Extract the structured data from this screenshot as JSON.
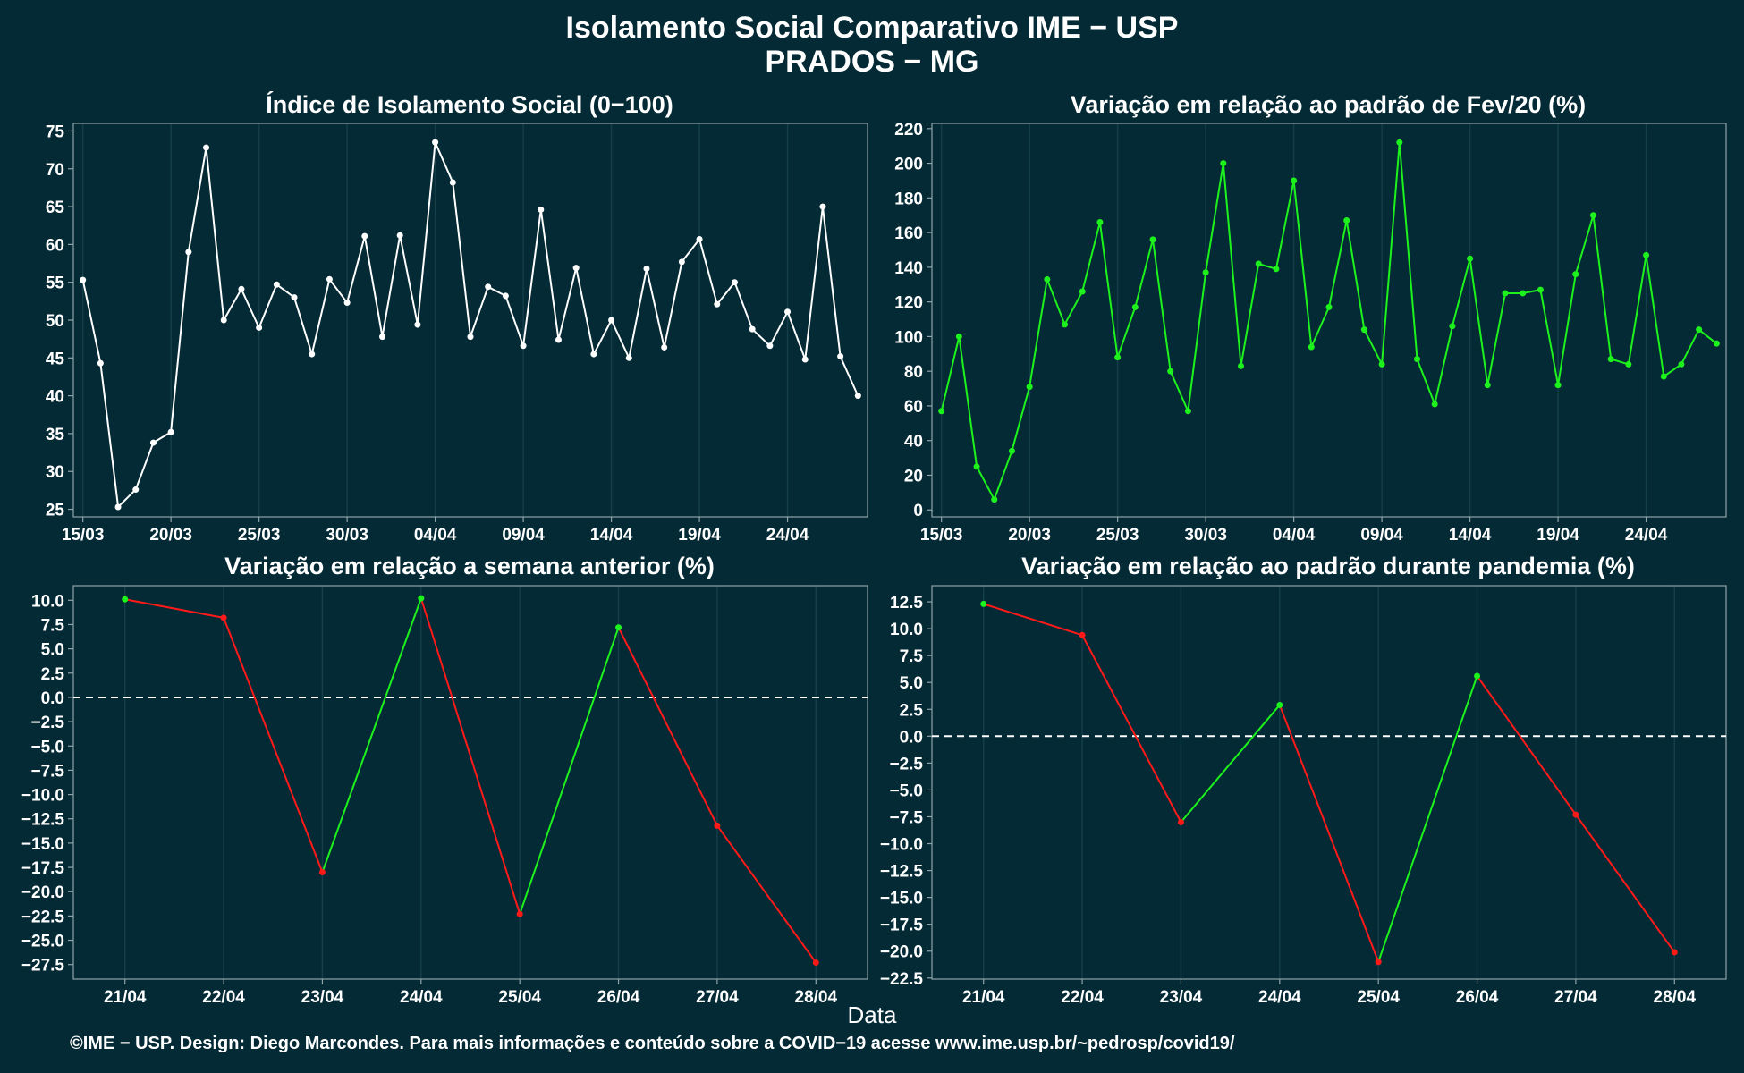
{
  "header": {
    "title_line1": "Isolamento Social Comparativo IME − USP",
    "title_line2": "PRADOS − MG"
  },
  "xlabel": "Data",
  "caption": "©IME − USP. Design: Diego Marcondes. Para mais informações e conteúdo sobre a COVID−19 acesse www.ime.usp.br/~pedrosp/covid19/",
  "colors": {
    "background": "#042a35",
    "white_series": "#ffffff",
    "green_series": "#1df21d",
    "red_series": "#ff1a1a",
    "grid": "#143e4a",
    "axis": "#8fa3a9"
  },
  "chart_data": [
    {
      "id": "p1",
      "type": "line",
      "title": "Índice de Isolamento Social (0−100)",
      "color_mode": "white",
      "x": [
        "15/03",
        "16/03",
        "17/03",
        "18/03",
        "19/03",
        "20/03",
        "21/03",
        "22/03",
        "23/03",
        "24/03",
        "25/03",
        "26/03",
        "27/03",
        "28/03",
        "29/03",
        "30/03",
        "31/03",
        "01/04",
        "02/04",
        "03/04",
        "04/04",
        "05/04",
        "06/04",
        "07/04",
        "08/04",
        "09/04",
        "10/04",
        "11/04",
        "12/04",
        "13/04",
        "14/04",
        "15/04",
        "16/04",
        "17/04",
        "18/04",
        "19/04",
        "20/04",
        "21/04",
        "22/04",
        "23/04",
        "24/04",
        "25/04",
        "26/04",
        "27/04",
        "28/04"
      ],
      "values": [
        55.3,
        44.3,
        25.3,
        27.6,
        33.8,
        35.2,
        59.0,
        72.8,
        50.0,
        54.1,
        49.0,
        54.7,
        53.0,
        45.5,
        55.4,
        52.3,
        61.1,
        47.8,
        61.2,
        49.4,
        73.5,
        68.2,
        47.8,
        54.4,
        53.2,
        46.6,
        64.6,
        47.4,
        56.9,
        45.5,
        50.0,
        45.0,
        56.8,
        46.4,
        57.7,
        60.7,
        52.1,
        55.0,
        48.8,
        46.6,
        51.1,
        44.8,
        65.0,
        45.2,
        40.0
      ],
      "x_ticks": [
        "15/03",
        "20/03",
        "25/03",
        "30/03",
        "04/04",
        "09/04",
        "14/04",
        "19/04",
        "24/04"
      ],
      "y_ticks": [
        25,
        30,
        35,
        40,
        45,
        50,
        55,
        60,
        65,
        70,
        75
      ],
      "ylim": [
        24,
        76
      ]
    },
    {
      "id": "p2",
      "type": "line",
      "title": "Variação em relação ao padrão de Fev/20 (%)",
      "color_mode": "green",
      "x": [
        "15/03",
        "16/03",
        "17/03",
        "18/03",
        "19/03",
        "20/03",
        "21/03",
        "22/03",
        "23/03",
        "24/03",
        "25/03",
        "26/03",
        "27/03",
        "28/03",
        "29/03",
        "30/03",
        "31/03",
        "01/04",
        "02/04",
        "03/04",
        "04/04",
        "05/04",
        "06/04",
        "07/04",
        "08/04",
        "09/04",
        "10/04",
        "11/04",
        "12/04",
        "13/04",
        "14/04",
        "15/04",
        "16/04",
        "17/04",
        "18/04",
        "19/04",
        "20/04",
        "21/04",
        "22/04",
        "23/04",
        "24/04",
        "25/04",
        "26/04",
        "27/04",
        "28/04"
      ],
      "values": [
        57,
        100,
        25,
        6,
        34,
        71,
        133,
        107,
        126,
        166,
        88,
        117,
        156,
        80,
        57,
        137,
        200,
        83,
        142,
        139,
        190,
        94,
        117,
        167,
        104,
        84,
        212,
        87,
        61,
        106,
        145,
        72,
        125,
        125,
        127,
        72,
        136,
        170,
        87,
        84,
        147,
        77,
        84,
        104,
        96
      ],
      "x_ticks": [
        "15/03",
        "20/03",
        "25/03",
        "30/03",
        "04/04",
        "09/04",
        "14/04",
        "19/04",
        "24/04"
      ],
      "y_ticks": [
        0,
        20,
        40,
        60,
        80,
        100,
        120,
        140,
        160,
        180,
        200,
        220
      ],
      "ylim": [
        -4,
        223
      ]
    },
    {
      "id": "p3",
      "type": "line",
      "title": "Variação em relação a semana anterior (%)",
      "color_mode": "trend",
      "x": [
        "21/04",
        "22/04",
        "23/04",
        "24/04",
        "25/04",
        "26/04",
        "27/04",
        "28/04"
      ],
      "values": [
        10.1,
        8.2,
        -18.0,
        10.2,
        -22.3,
        7.2,
        -13.2,
        -27.3
      ],
      "x_ticks": [
        "21/04",
        "22/04",
        "23/04",
        "24/04",
        "25/04",
        "26/04",
        "27/04",
        "28/04"
      ],
      "y_ticks": [
        10.0,
        7.5,
        5.0,
        2.5,
        0.0,
        -2.5,
        -5.0,
        -7.5,
        -10.0,
        -12.5,
        -15.0,
        -17.5,
        -20.0,
        -22.5,
        -25.0,
        -27.5
      ],
      "y_tick_labels": [
        "10.0",
        "7.5",
        "5.0",
        "2.5",
        "0.0",
        "−2.5",
        "−5.0",
        "−7.5",
        "−10.0",
        "−12.5",
        "−15.0",
        "−17.5",
        "−20.0",
        "−22.5",
        "−25.0",
        "−27.5"
      ],
      "ylim": [
        -29,
        11.5
      ],
      "reference_line": 0
    },
    {
      "id": "p4",
      "type": "line",
      "title": "Variação em relação ao padrão durante pandemia (%)",
      "color_mode": "trend",
      "x": [
        "21/04",
        "22/04",
        "23/04",
        "24/04",
        "25/04",
        "26/04",
        "27/04",
        "28/04"
      ],
      "values": [
        12.3,
        9.4,
        -8.0,
        2.9,
        -21.0,
        5.6,
        -7.3,
        -20.1
      ],
      "x_ticks": [
        "21/04",
        "22/04",
        "23/04",
        "24/04",
        "25/04",
        "26/04",
        "27/04",
        "28/04"
      ],
      "y_ticks": [
        12.5,
        10.0,
        7.5,
        5.0,
        2.5,
        0.0,
        -2.5,
        -5.0,
        -7.5,
        -10.0,
        -12.5,
        -15.0,
        -17.5,
        -20.0,
        -22.5
      ],
      "y_tick_labels": [
        "12.5",
        "10.0",
        "7.5",
        "5.0",
        "2.5",
        "0.0",
        "−2.5",
        "−5.0",
        "−7.5",
        "−10.0",
        "−12.5",
        "−15.0",
        "−17.5",
        "−20.0",
        "−22.5"
      ],
      "ylim": [
        -22.6,
        14
      ],
      "reference_line": 0
    }
  ]
}
